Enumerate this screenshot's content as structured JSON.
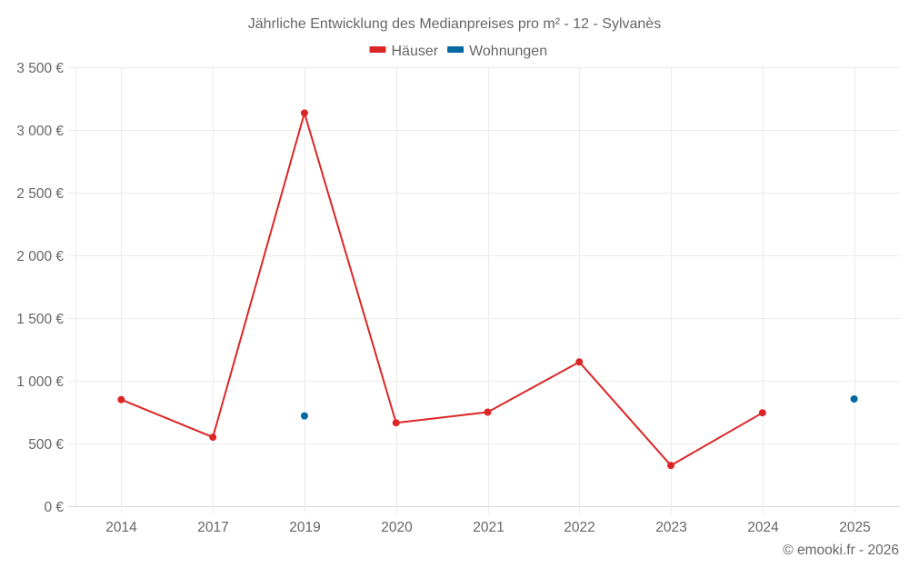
{
  "chart_data": {
    "type": "line",
    "title": "Jährliche Entwicklung des Medianpreises pro m² - 12 - Sylvanès",
    "xlabel": "",
    "ylabel": "",
    "categories": [
      "2014",
      "2017",
      "2019",
      "2020",
      "2021",
      "2022",
      "2023",
      "2024",
      "2025"
    ],
    "series": [
      {
        "name": "Häuser",
        "color": "#dc2626",
        "values": [
          850,
          550,
          3135,
          665,
          750,
          1150,
          325,
          745,
          null
        ]
      },
      {
        "name": "Wohnungen",
        "color": "#0369a1",
        "values": [
          null,
          null,
          720,
          null,
          null,
          null,
          null,
          null,
          855
        ]
      }
    ],
    "ylim": [
      0,
      3500
    ],
    "yticks": [
      0,
      500,
      1000,
      1500,
      2000,
      2500,
      3000,
      3500
    ],
    "ytick_labels": [
      "0 €",
      "500 €",
      "1 000 €",
      "1 500 €",
      "2 000 €",
      "2 500 €",
      "3 000 €",
      "3 500 €"
    ],
    "grid": true,
    "legend_position": "top-center"
  },
  "legend": {
    "items": [
      {
        "label": "Häuser",
        "color": "#dc2626"
      },
      {
        "label": "Wohnungen",
        "color": "#0369a1"
      }
    ]
  },
  "credit": "© emooki.fr - 2026"
}
